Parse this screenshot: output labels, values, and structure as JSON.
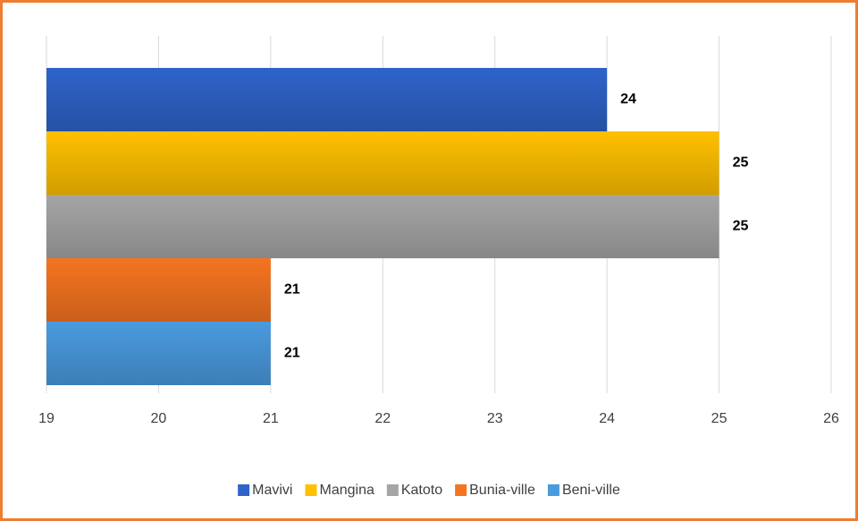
{
  "chart_data": {
    "type": "bar",
    "orientation": "horizontal",
    "series": [
      {
        "name": "Mavivi",
        "color": "#2e63c9",
        "values": [
          24
        ]
      },
      {
        "name": "Mangina",
        "color": "#ffc000",
        "values": [
          25
        ]
      },
      {
        "name": "Katoto",
        "color": "#a5a5a5",
        "values": [
          25
        ]
      },
      {
        "name": "Bunia-ville",
        "color": "#f57420",
        "values": [
          21
        ]
      },
      {
        "name": "Beni-ville",
        "color": "#4a9ade",
        "values": [
          21
        ]
      }
    ],
    "xlim": [
      19,
      26
    ],
    "xticks": [
      19,
      20,
      21,
      22,
      23,
      24,
      25,
      26
    ],
    "grid": true,
    "legend": "bottom"
  }
}
